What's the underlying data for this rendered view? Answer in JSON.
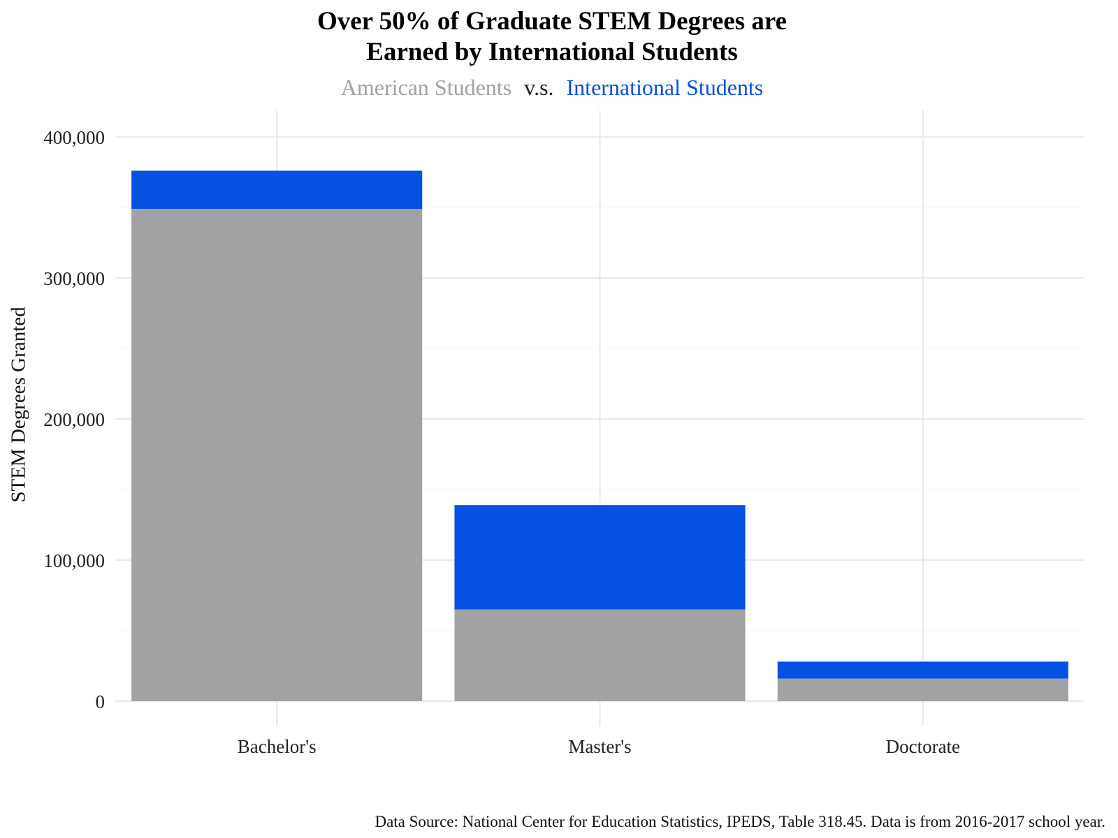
{
  "chart_data": {
    "type": "bar",
    "stacked": true,
    "title_line1": "Over 50% of Graduate STEM Degrees are",
    "title_line2": "Earned by International Students",
    "subtitle": {
      "american": "American Students",
      "vs": "v.s.",
      "international": "International Students"
    },
    "ylabel": "STEM Degrees Granted",
    "xlabel": "",
    "categories": [
      "Bachelor's",
      "Master's",
      "Doctorate"
    ],
    "series": [
      {
        "name": "American Students",
        "color": "#a1a2a4",
        "values": [
          349000,
          65000,
          16000
        ]
      },
      {
        "name": "International Students",
        "color": "#0651e1",
        "values": [
          27000,
          74000,
          12000
        ]
      }
    ],
    "ylim": [
      0,
      400000
    ],
    "yticks": [
      0,
      100000,
      200000,
      300000,
      400000
    ],
    "ytick_labels": [
      "0",
      "100,000",
      "200,000",
      "300,000",
      "400,000"
    ],
    "grid": true,
    "legend": "none",
    "caption": "Data Source: National Center for Education Statistics, IPEDS, Table 318.45. Data is from 2016-2017 school year."
  }
}
